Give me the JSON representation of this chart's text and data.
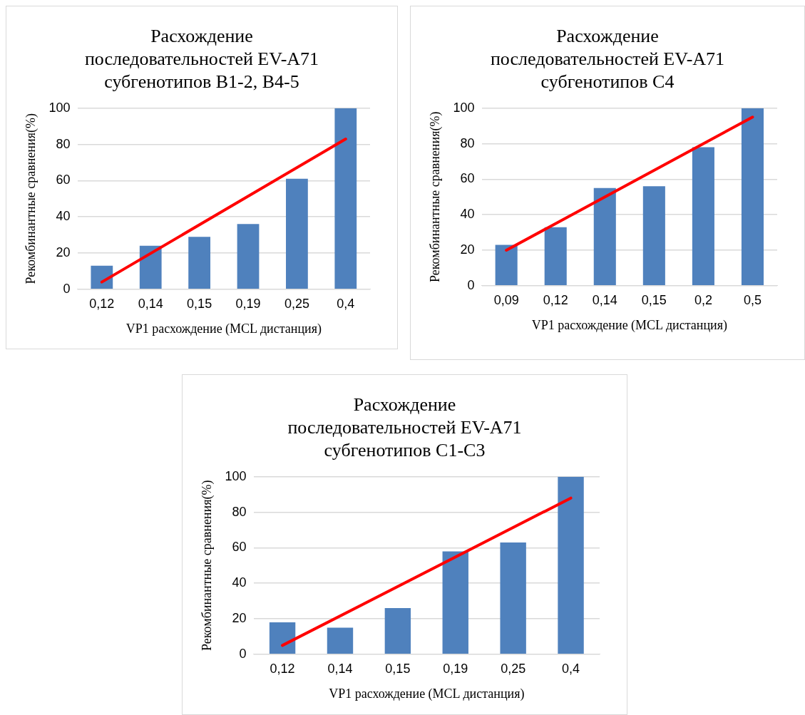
{
  "chart_data": [
    {
      "type": "bar",
      "title": "Расхождение последовательностей EV-A71 субгенотипов B1-2, B4-5",
      "xlabel": "VP1 расхождение (MCL дистанция)",
      "ylabel": "Рекомбинантные сравнения(%)",
      "categories": [
        "0,12",
        "0,14",
        "0,15",
        "0,19",
        "0,25",
        "0,4"
      ],
      "ylim": [
        0,
        100
      ],
      "yticks": [
        0,
        20,
        40,
        60,
        80,
        100
      ],
      "grid": "y",
      "legend": false,
      "series": [
        {
          "color": "#4f81bd",
          "values": [
            13,
            24,
            29,
            36,
            61,
            100
          ]
        },
        {
          "type": "line",
          "color": "#ff0000",
          "x": [
            "0,12",
            "0,4"
          ],
          "values": [
            4,
            83
          ]
        }
      ]
    },
    {
      "type": "bar",
      "title": "Расхождение последовательностей EV-A71 субгенотипов C4",
      "xlabel": "VP1 расхождение (MCL дистанция)",
      "ylabel": "Рекомбинантные сравнения(%)",
      "categories": [
        "0,09",
        "0,12",
        "0,14",
        "0,15",
        "0,2",
        "0,5"
      ],
      "ylim": [
        0,
        100
      ],
      "yticks": [
        0,
        20,
        40,
        60,
        80,
        100
      ],
      "grid": "y",
      "legend": false,
      "series": [
        {
          "color": "#4f81bd",
          "values": [
            23,
            33,
            55,
            56,
            78,
            100
          ]
        },
        {
          "type": "line",
          "color": "#ff0000",
          "x": [
            "0,09",
            "0,5"
          ],
          "values": [
            20,
            95
          ]
        }
      ]
    },
    {
      "type": "bar",
      "title": "Расхождение последовательностей EV-A71 субгенотипов C1-C3",
      "xlabel": "VP1 расхождение (MCL дистанция)",
      "ylabel": "Рекомбинантные сравнения(%)",
      "categories": [
        "0,12",
        "0,14",
        "0,15",
        "0,19",
        "0,25",
        "0,4"
      ],
      "ylim": [
        0,
        100
      ],
      "yticks": [
        0,
        20,
        40,
        60,
        80,
        100
      ],
      "grid": "y",
      "legend": false,
      "series": [
        {
          "color": "#4f81bd",
          "values": [
            18,
            15,
            26,
            58,
            63,
            100
          ]
        },
        {
          "type": "line",
          "color": "#ff0000",
          "x": [
            "0,12",
            "0,4"
          ],
          "values": [
            5,
            88
          ]
        }
      ]
    }
  ]
}
